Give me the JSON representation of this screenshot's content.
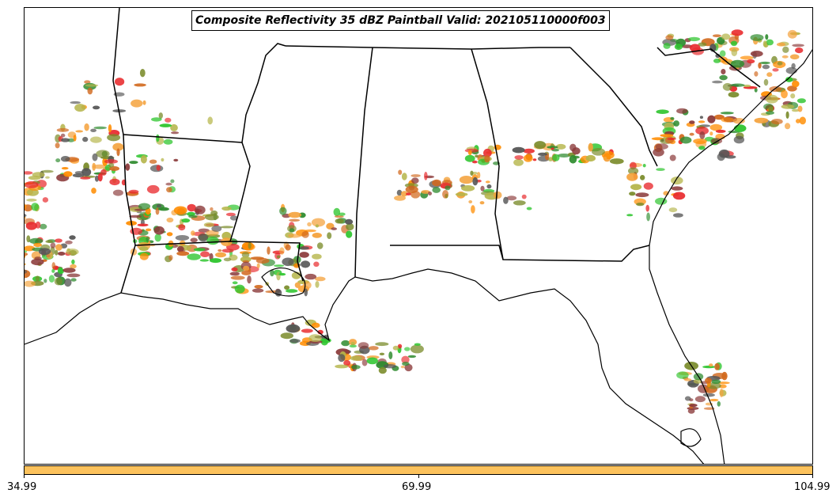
{
  "map": {
    "title": "Composite Reflectivity 35 dBZ Paintball Valid: 202105110000f003",
    "ensemble_colors": [
      "#e8282b",
      "#2ec52e",
      "#ff8c00",
      "#8b3a3a",
      "#7a8b2a",
      "#f4a23c",
      "#2e8b2e",
      "#b5b54a",
      "#555555",
      "#d2691e"
    ]
  },
  "colorbar": {
    "color": "#fcc25c",
    "ticks": [
      "34.99",
      "69.99",
      "104.99"
    ]
  }
}
